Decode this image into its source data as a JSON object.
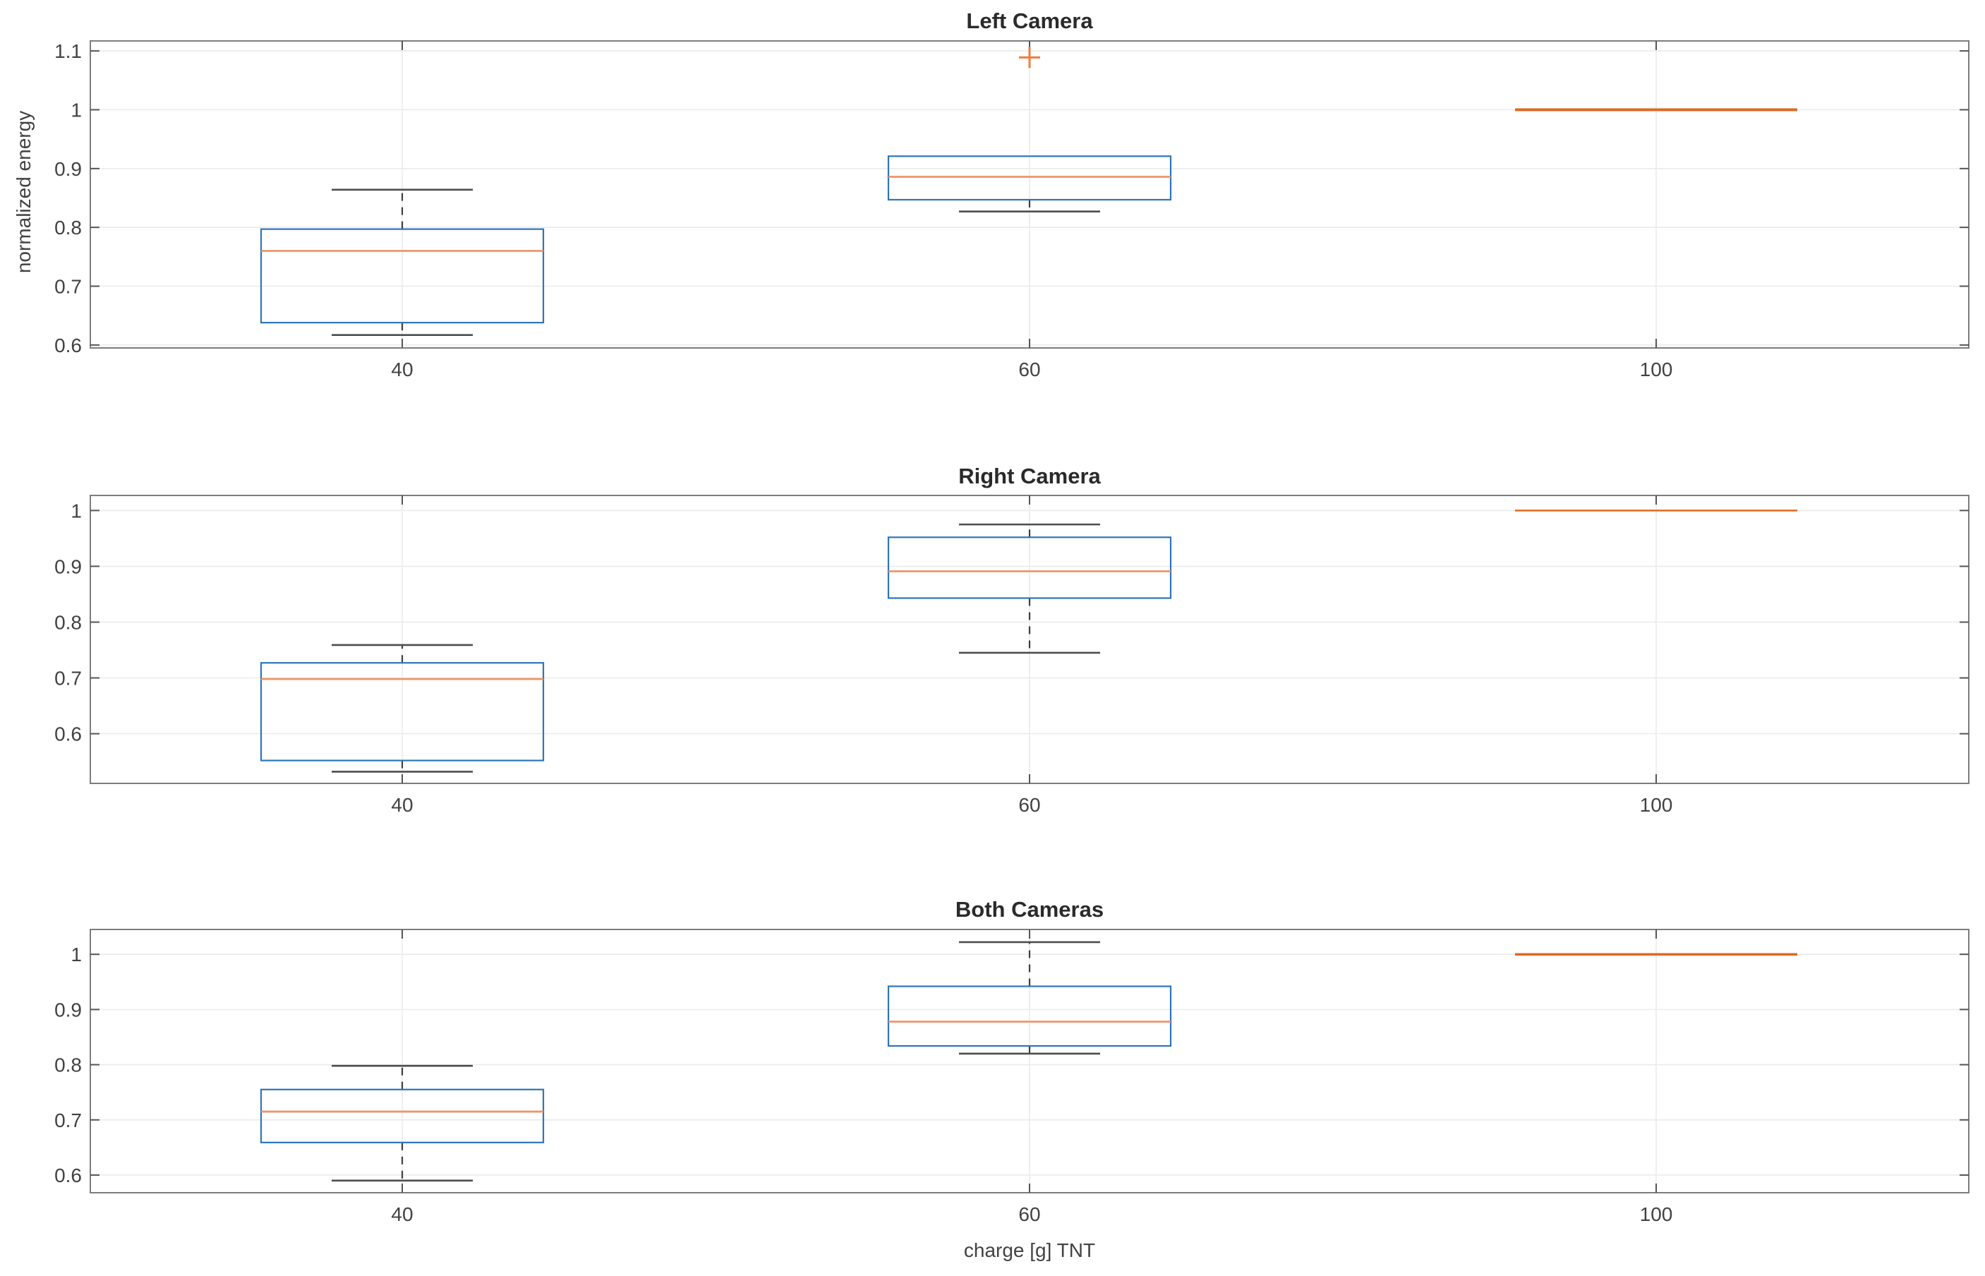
{
  "xlabel": "charge [g] TNT",
  "ylabel": "normalized energy",
  "x_tick_labels": [
    "40",
    "60",
    "100"
  ],
  "colors": {
    "background": "#ffffff",
    "box_edge": "#2e75b9",
    "median": "#ee9569",
    "flat_line": "#e06722",
    "whisker": "#3f3f3f",
    "whisker_cap": "#4d4d4d",
    "outlier": "#ef7d3b",
    "grid": "#ebebeb",
    "frame": "#7d7d7d",
    "tick_mark": "#555555",
    "tick_label": "#424242",
    "title": "#2a2a2a"
  },
  "chart_data": [
    {
      "type": "boxplot",
      "title": "Left Camera",
      "xlabel": "",
      "ylabel": "normalized energy",
      "categories": [
        "40",
        "60",
        "100"
      ],
      "ylim": [
        0.595,
        1.117
      ],
      "yticks": [
        0.6,
        0.7,
        0.8,
        0.9,
        1,
        1.1
      ],
      "grid": true,
      "boxes": [
        {
          "category": "40",
          "whisker_low": 0.617,
          "q1": 0.638,
          "median": 0.76,
          "q3": 0.797,
          "whisker_high": 0.864,
          "outliers": []
        },
        {
          "category": "60",
          "whisker_low": 0.827,
          "q1": 0.847,
          "median": 0.886,
          "q3": 0.921,
          "whisker_high": null,
          "outliers": [
            1.089
          ]
        },
        {
          "category": "100",
          "whisker_low": 1.0,
          "q1": 1.0,
          "median": 1.0,
          "q3": 1.0,
          "whisker_high": 1.0,
          "outliers": []
        }
      ]
    },
    {
      "type": "boxplot",
      "title": "Right Camera",
      "xlabel": "",
      "ylabel": "",
      "categories": [
        "40",
        "60",
        "100"
      ],
      "ylim": [
        0.511,
        1.027
      ],
      "yticks": [
        0.6,
        0.7,
        0.8,
        0.9,
        1
      ],
      "grid": true,
      "boxes": [
        {
          "category": "40",
          "whisker_low": 0.532,
          "q1": 0.552,
          "median": 0.698,
          "q3": 0.727,
          "whisker_high": 0.759,
          "outliers": []
        },
        {
          "category": "60",
          "whisker_low": 0.745,
          "q1": 0.843,
          "median": 0.891,
          "q3": 0.952,
          "whisker_high": 0.975,
          "outliers": []
        },
        {
          "category": "100",
          "whisker_low": 1.0,
          "q1": 1.0,
          "median": 1.0,
          "q3": 1.0,
          "whisker_high": 1.0,
          "outliers": []
        }
      ]
    },
    {
      "type": "boxplot",
      "title": "Both Cameras",
      "xlabel": "charge [g] TNT",
      "ylabel": "",
      "categories": [
        "40",
        "60",
        "100"
      ],
      "ylim": [
        0.568,
        1.045
      ],
      "yticks": [
        0.6,
        0.7,
        0.8,
        0.9,
        1
      ],
      "grid": true,
      "boxes": [
        {
          "category": "40",
          "whisker_low": 0.59,
          "q1": 0.659,
          "median": 0.715,
          "q3": 0.755,
          "whisker_high": 0.798,
          "outliers": []
        },
        {
          "category": "60",
          "whisker_low": 0.82,
          "q1": 0.834,
          "median": 0.878,
          "q3": 0.942,
          "whisker_high": 1.022,
          "outliers": []
        },
        {
          "category": "100",
          "whisker_low": 1.0,
          "q1": 1.0,
          "median": 1.0,
          "q3": 1.0,
          "whisker_high": 1.0,
          "outliers": []
        }
      ]
    }
  ]
}
